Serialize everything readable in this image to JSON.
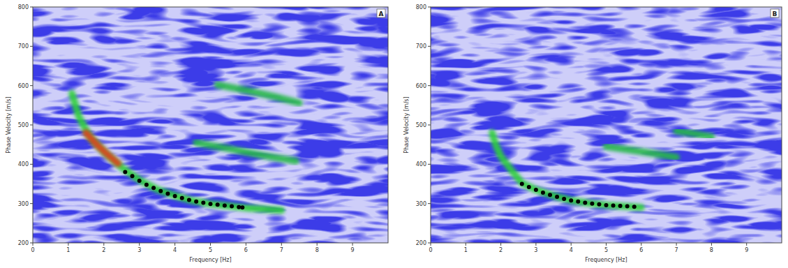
{
  "chart_data": [
    {
      "type": "scatter",
      "title": "A",
      "x_label": "Frequency [Hz]",
      "y_label": "Phase Velocity [m/s]",
      "xlim": [
        0,
        10
      ],
      "xticks": [
        0,
        1,
        2,
        3,
        4,
        5,
        6,
        7,
        8,
        9
      ],
      "ylim": [
        200,
        800
      ],
      "yticks": [
        200,
        300,
        400,
        500,
        600,
        700,
        800
      ],
      "series": [
        {
          "type": "line",
          "color": "#2fd03a",
          "x": [
            1.1,
            1.3,
            1.6,
            2.0,
            2.5,
            3.0,
            3.5,
            4.0,
            4.5,
            5.0,
            5.5,
            6.0,
            7.0
          ],
          "values": [
            580,
            520,
            470,
            432,
            392,
            360,
            336,
            320,
            307,
            299,
            294,
            289,
            283
          ]
        },
        {
          "type": "line",
          "color": "#e0401e",
          "x": [
            1.5,
            1.8,
            2.1,
            2.4
          ],
          "values": [
            480,
            450,
            425,
            402
          ]
        },
        {
          "type": "line",
          "color": "#25b84a",
          "x": [
            5.2,
            6.0,
            6.8,
            7.5
          ],
          "values": [
            602,
            588,
            572,
            556
          ]
        },
        {
          "type": "line",
          "color": "#25b84a",
          "x": [
            4.6,
            5.5,
            6.5,
            7.4
          ],
          "values": [
            455,
            440,
            422,
            408
          ]
        },
        {
          "type": "scatter",
          "color": "#000000",
          "marker": "circle",
          "x": [
            2.6,
            2.8,
            3.0,
            3.2,
            3.4,
            3.6,
            3.8,
            4.0,
            4.2,
            4.4,
            4.6,
            4.8,
            5.0,
            5.2,
            5.4,
            5.6,
            5.8,
            5.9
          ],
          "values": [
            380,
            370,
            358,
            348,
            340,
            332,
            325,
            319,
            314,
            309,
            305,
            302,
            299,
            297,
            295,
            293,
            291,
            290
          ]
        }
      ]
    },
    {
      "type": "scatter",
      "title": "B",
      "x_label": "Frequency [Hz]",
      "y_label": "Phase Velocity [m/s]",
      "xlim": [
        0,
        10
      ],
      "xticks": [
        0,
        1,
        2,
        3,
        4,
        5,
        6,
        7,
        8,
        9
      ],
      "ylim": [
        200,
        800
      ],
      "yticks": [
        200,
        300,
        400,
        500,
        600,
        700,
        800
      ],
      "series": [
        {
          "type": "line",
          "color": "#2fd03a",
          "x": [
            1.75,
            1.85,
            2.0,
            2.3,
            2.6,
            3.0,
            3.5,
            4.0,
            4.5,
            5.0,
            5.5,
            6.0
          ],
          "values": [
            480,
            450,
            420,
            385,
            352,
            335,
            320,
            308,
            301,
            296,
            293,
            290
          ]
        },
        {
          "type": "line",
          "color": "#25b84a",
          "x": [
            7.0,
            7.5,
            8.0
          ],
          "values": [
            485,
            478,
            470
          ]
        },
        {
          "type": "line",
          "color": "#25b84a",
          "x": [
            5.0,
            6.0,
            7.0
          ],
          "values": [
            445,
            432,
            418
          ]
        },
        {
          "type": "scatter",
          "color": "#000000",
          "marker": "circle",
          "x": [
            2.6,
            2.8,
            3.0,
            3.2,
            3.4,
            3.6,
            3.8,
            4.0,
            4.2,
            4.4,
            4.6,
            4.8,
            5.0,
            5.2,
            5.4,
            5.6,
            5.8
          ],
          "values": [
            350,
            342,
            335,
            328,
            322,
            317,
            312,
            308,
            305,
            302,
            300,
            298,
            296,
            295,
            294,
            293,
            292
          ]
        }
      ]
    }
  ]
}
